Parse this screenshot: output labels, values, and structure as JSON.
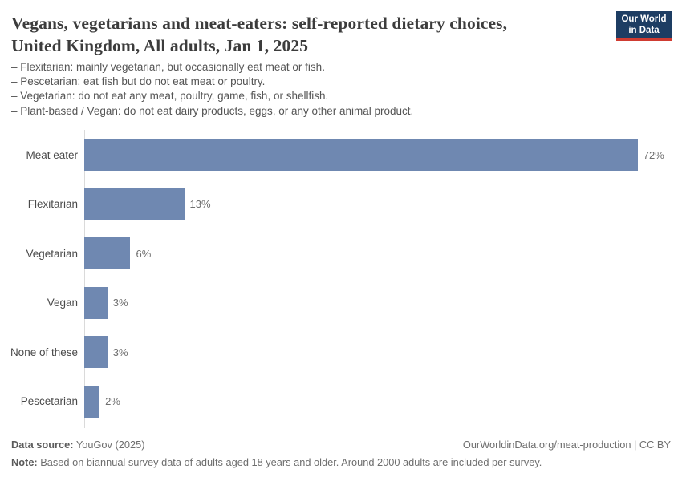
{
  "header": {
    "title_line1": "Vegans, vegetarians and meat-eaters: self-reported dietary choices,",
    "title_line2": "United Kingdom, All adults, Jan 1, 2025",
    "subtitle_lines": [
      "– Flexitarian: mainly vegetarian, but occasionally eat meat or fish.",
      "– Pescetarian: eat fish but do not eat meat or poultry.",
      "– Vegetarian: do not eat any meat, poultry, game, fish, or shellfish.",
      "– Plant-based / Vegan: do not eat dairy products, eggs, or any other animal product."
    ],
    "logo": {
      "line1": "Our World",
      "line2": "in Data"
    }
  },
  "chart_data": {
    "type": "bar",
    "orientation": "horizontal",
    "title": "Vegans, vegetarians and meat-eaters: self-reported dietary choices, United Kingdom, All adults, Jan 1, 2025",
    "categories": [
      "Meat eater",
      "Flexitarian",
      "Vegetarian",
      "Vegan",
      "None of these",
      "Pescetarian"
    ],
    "values": [
      72,
      13,
      6,
      3,
      3,
      2
    ],
    "value_labels": [
      "72%",
      "13%",
      "6%",
      "3%",
      "3%",
      "2%"
    ],
    "unit": "%",
    "xlim": [
      0,
      75
    ],
    "grid": false,
    "legend": "none"
  },
  "colors": {
    "bar": "#6f88b1",
    "logo_navy": "#1d3d63",
    "logo_red": "#cf3b31"
  },
  "footer": {
    "datasource_label": "Data source:",
    "datasource_value": " YouGov (2025)",
    "link": "OurWorldinData.org/meat-production | CC BY",
    "note_label": "Note:",
    "note_value": " Based on biannual survey data of adults aged 18 years and older. Around 2000 adults are included per survey."
  }
}
